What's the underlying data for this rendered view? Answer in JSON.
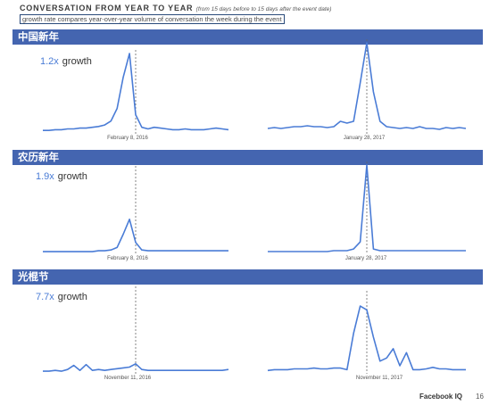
{
  "header": {
    "title": "CONVERSATION FROM YEAR TO YEAR",
    "subtitle": "(from 15 days before to 15 days after the event date)",
    "description": "growth rate compares year-over-year volume of conversation the week during the event"
  },
  "sections": [
    {
      "label": "中国新年",
      "growth_multiplier": "1.2x",
      "growth_word": "growth",
      "left_date": "February 8, 2016",
      "right_date": "January 28, 2017"
    },
    {
      "label": "农历新年",
      "growth_multiplier": "1.9x",
      "growth_word": "growth",
      "left_date": "February 8, 2016",
      "right_date": "January 28, 2017"
    },
    {
      "label": "光棍节",
      "growth_multiplier": "7.7x",
      "growth_word": "growth",
      "left_date": "November 11, 2016",
      "right_date": "November 11, 2017"
    }
  ],
  "footer": {
    "brand": "Facebook IQ",
    "page": "16"
  },
  "colors": {
    "band": "#4465b0",
    "line": "#4a7cd6",
    "event_marker": "#666666"
  },
  "chart_data": [
    {
      "type": "line",
      "section": "中国新年",
      "event_date": "February 8, 2016",
      "x": [
        -15,
        -14,
        -13,
        -12,
        -11,
        -10,
        -9,
        -8,
        -7,
        -6,
        -5,
        -4,
        -3,
        -2,
        -1,
        0,
        1,
        2,
        3,
        4,
        5,
        6,
        7,
        8,
        9,
        10,
        11,
        12,
        13,
        14,
        15
      ],
      "values": [
        0.02,
        0.02,
        0.03,
        0.03,
        0.04,
        0.04,
        0.05,
        0.05,
        0.06,
        0.07,
        0.09,
        0.14,
        0.3,
        0.7,
        1.0,
        0.22,
        0.06,
        0.04,
        0.06,
        0.05,
        0.04,
        0.03,
        0.03,
        0.04,
        0.03,
        0.03,
        0.03,
        0.04,
        0.05,
        0.04,
        0.03
      ]
    },
    {
      "type": "line",
      "section": "中国新年",
      "event_date": "January 28, 2017",
      "x": [
        -15,
        -14,
        -13,
        -12,
        -11,
        -10,
        -9,
        -8,
        -7,
        -6,
        -5,
        -4,
        -3,
        -2,
        -1,
        0,
        1,
        2,
        3,
        4,
        5,
        6,
        7,
        8,
        9,
        10,
        11,
        12,
        13,
        14,
        15
      ],
      "values": [
        0.04,
        0.05,
        0.04,
        0.05,
        0.06,
        0.06,
        0.07,
        0.06,
        0.06,
        0.05,
        0.06,
        0.12,
        0.1,
        0.12,
        0.55,
        1.0,
        0.45,
        0.12,
        0.06,
        0.05,
        0.04,
        0.05,
        0.04,
        0.06,
        0.04,
        0.04,
        0.03,
        0.05,
        0.04,
        0.05,
        0.04
      ]
    },
    {
      "type": "line",
      "section": "农历新年",
      "event_date": "February 8, 2016",
      "x": [
        -15,
        -14,
        -13,
        -12,
        -11,
        -10,
        -9,
        -8,
        -7,
        -6,
        -5,
        -4,
        -3,
        -2,
        -1,
        0,
        1,
        2,
        3,
        4,
        5,
        6,
        7,
        8,
        9,
        10,
        11,
        12,
        13,
        14,
        15
      ],
      "values": [
        0.01,
        0.01,
        0.01,
        0.01,
        0.01,
        0.01,
        0.01,
        0.01,
        0.01,
        0.02,
        0.02,
        0.03,
        0.06,
        0.22,
        0.4,
        0.12,
        0.03,
        0.02,
        0.02,
        0.02,
        0.02,
        0.02,
        0.02,
        0.02,
        0.02,
        0.02,
        0.02,
        0.02,
        0.02,
        0.02,
        0.02
      ]
    },
    {
      "type": "line",
      "section": "农历新年",
      "event_date": "January 28, 2017",
      "x": [
        -15,
        -14,
        -13,
        -12,
        -11,
        -10,
        -9,
        -8,
        -7,
        -6,
        -5,
        -4,
        -3,
        -2,
        -1,
        0,
        1,
        2,
        3,
        4,
        5,
        6,
        7,
        8,
        9,
        10,
        11,
        12,
        13,
        14,
        15
      ],
      "values": [
        0.01,
        0.01,
        0.01,
        0.01,
        0.01,
        0.01,
        0.01,
        0.01,
        0.01,
        0.01,
        0.02,
        0.02,
        0.02,
        0.04,
        0.12,
        1.0,
        0.04,
        0.02,
        0.02,
        0.02,
        0.02,
        0.02,
        0.02,
        0.02,
        0.02,
        0.02,
        0.02,
        0.02,
        0.02,
        0.02,
        0.02
      ]
    },
    {
      "type": "line",
      "section": "光棍节",
      "event_date": "November 11, 2016",
      "x": [
        -15,
        -14,
        -13,
        -12,
        -11,
        -10,
        -9,
        -8,
        -7,
        -6,
        -5,
        -4,
        -3,
        -2,
        -1,
        0,
        1,
        2,
        3,
        4,
        5,
        6,
        7,
        8,
        9,
        10,
        11,
        12,
        13,
        14,
        15
      ],
      "values": [
        0.01,
        0.01,
        0.02,
        0.01,
        0.03,
        0.08,
        0.02,
        0.09,
        0.02,
        0.03,
        0.02,
        0.03,
        0.04,
        0.05,
        0.06,
        0.1,
        0.03,
        0.02,
        0.02,
        0.02,
        0.02,
        0.02,
        0.02,
        0.02,
        0.02,
        0.02,
        0.02,
        0.02,
        0.02,
        0.02,
        0.03
      ]
    },
    {
      "type": "line",
      "section": "光棍节",
      "event_date": "November 11, 2017",
      "x": [
        -15,
        -14,
        -13,
        -12,
        -11,
        -10,
        -9,
        -8,
        -7,
        -6,
        -5,
        -4,
        -3,
        -2,
        -1,
        0,
        1,
        2,
        3,
        4,
        5,
        6,
        7,
        8,
        9,
        10,
        11,
        12,
        13,
        14,
        15
      ],
      "values": [
        0.02,
        0.03,
        0.03,
        0.03,
        0.04,
        0.04,
        0.04,
        0.05,
        0.04,
        0.04,
        0.05,
        0.05,
        0.03,
        0.5,
        0.85,
        0.8,
        0.45,
        0.14,
        0.18,
        0.3,
        0.08,
        0.25,
        0.03,
        0.03,
        0.04,
        0.06,
        0.04,
        0.04,
        0.03,
        0.03,
        0.03
      ]
    }
  ]
}
